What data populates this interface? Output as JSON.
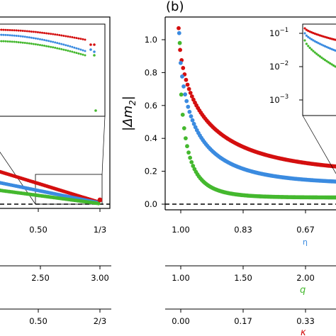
{
  "chart_data": [
    {
      "panel": "left (cropped)",
      "type": "scatter",
      "x_ticks": [
        "0.50",
        "1/3"
      ],
      "secondary_axes": [
        {
          "ticks": [
            "2.50",
            "3.00"
          ]
        },
        {
          "ticks": [
            "0.50",
            "2/3"
          ]
        }
      ],
      "inset_tick_labels": [],
      "colors": {
        "red": "#d40f0f",
        "blue": "#3b8be0",
        "green": "#44b82e"
      }
    },
    {
      "panel_label": "(b)",
      "type": "scatter",
      "ylabel": "|Δm₂|",
      "ylim": [
        -0.03,
        1.1
      ],
      "y_ticks": [
        "0.0",
        "0.2",
        "0.4",
        "0.6",
        "0.8",
        "1.0"
      ],
      "axes": [
        {
          "label": "η",
          "label_color": "#3b8be0",
          "ticks": [
            "1.00",
            "0.83",
            "0.67"
          ]
        },
        {
          "label": "q",
          "label_color": "#44b82e",
          "ticks": [
            "1.00",
            "1.50",
            "2.00"
          ]
        },
        {
          "label": "κ",
          "label_color": "#d40f0f",
          "ticks": [
            "0.00",
            "0.17",
            "0.33"
          ]
        }
      ],
      "dashed_reference": 0.0,
      "series": [
        {
          "color": "#d40f0f",
          "start": 1.07,
          "values_at_right_edge": 0.18
        },
        {
          "color": "#3b8be0",
          "start": 1.04,
          "values_at_right_edge": 0.12
        },
        {
          "color": "#44b82e",
          "start": 0.98,
          "values_at_right_edge": 0.04
        }
      ],
      "inset": {
        "y_scale": "log",
        "y_ticks": [
          "10^-1",
          "10^-2",
          "10^-3"
        ]
      }
    }
  ],
  "labels": {
    "panel_b": "(b)",
    "ylabel_main": "|Δm",
    "ylabel_sub": "2",
    "ylabel_close": "|",
    "left_ticks_axis1": [
      "0.50",
      "1/3"
    ],
    "left_ticks_axis2": [
      "2.50",
      "3.00"
    ],
    "left_ticks_axis3": [
      "0.50",
      "2/3"
    ],
    "right_yticks": [
      "0.0",
      "0.2",
      "0.4",
      "0.6",
      "0.8",
      "1.0"
    ],
    "eta_ticks": [
      "1.00",
      "0.83",
      "0.67"
    ],
    "q_ticks": [
      "1.00",
      "1.50",
      "2.00"
    ],
    "kappa_ticks": [
      "0.00",
      "0.17",
      "0.33"
    ],
    "eta_label": "η",
    "q_label": "q",
    "kappa_label": "κ",
    "inset_base": [
      "10",
      "10",
      "10"
    ],
    "inset_exp": [
      "−1",
      "−2",
      "−3"
    ]
  }
}
